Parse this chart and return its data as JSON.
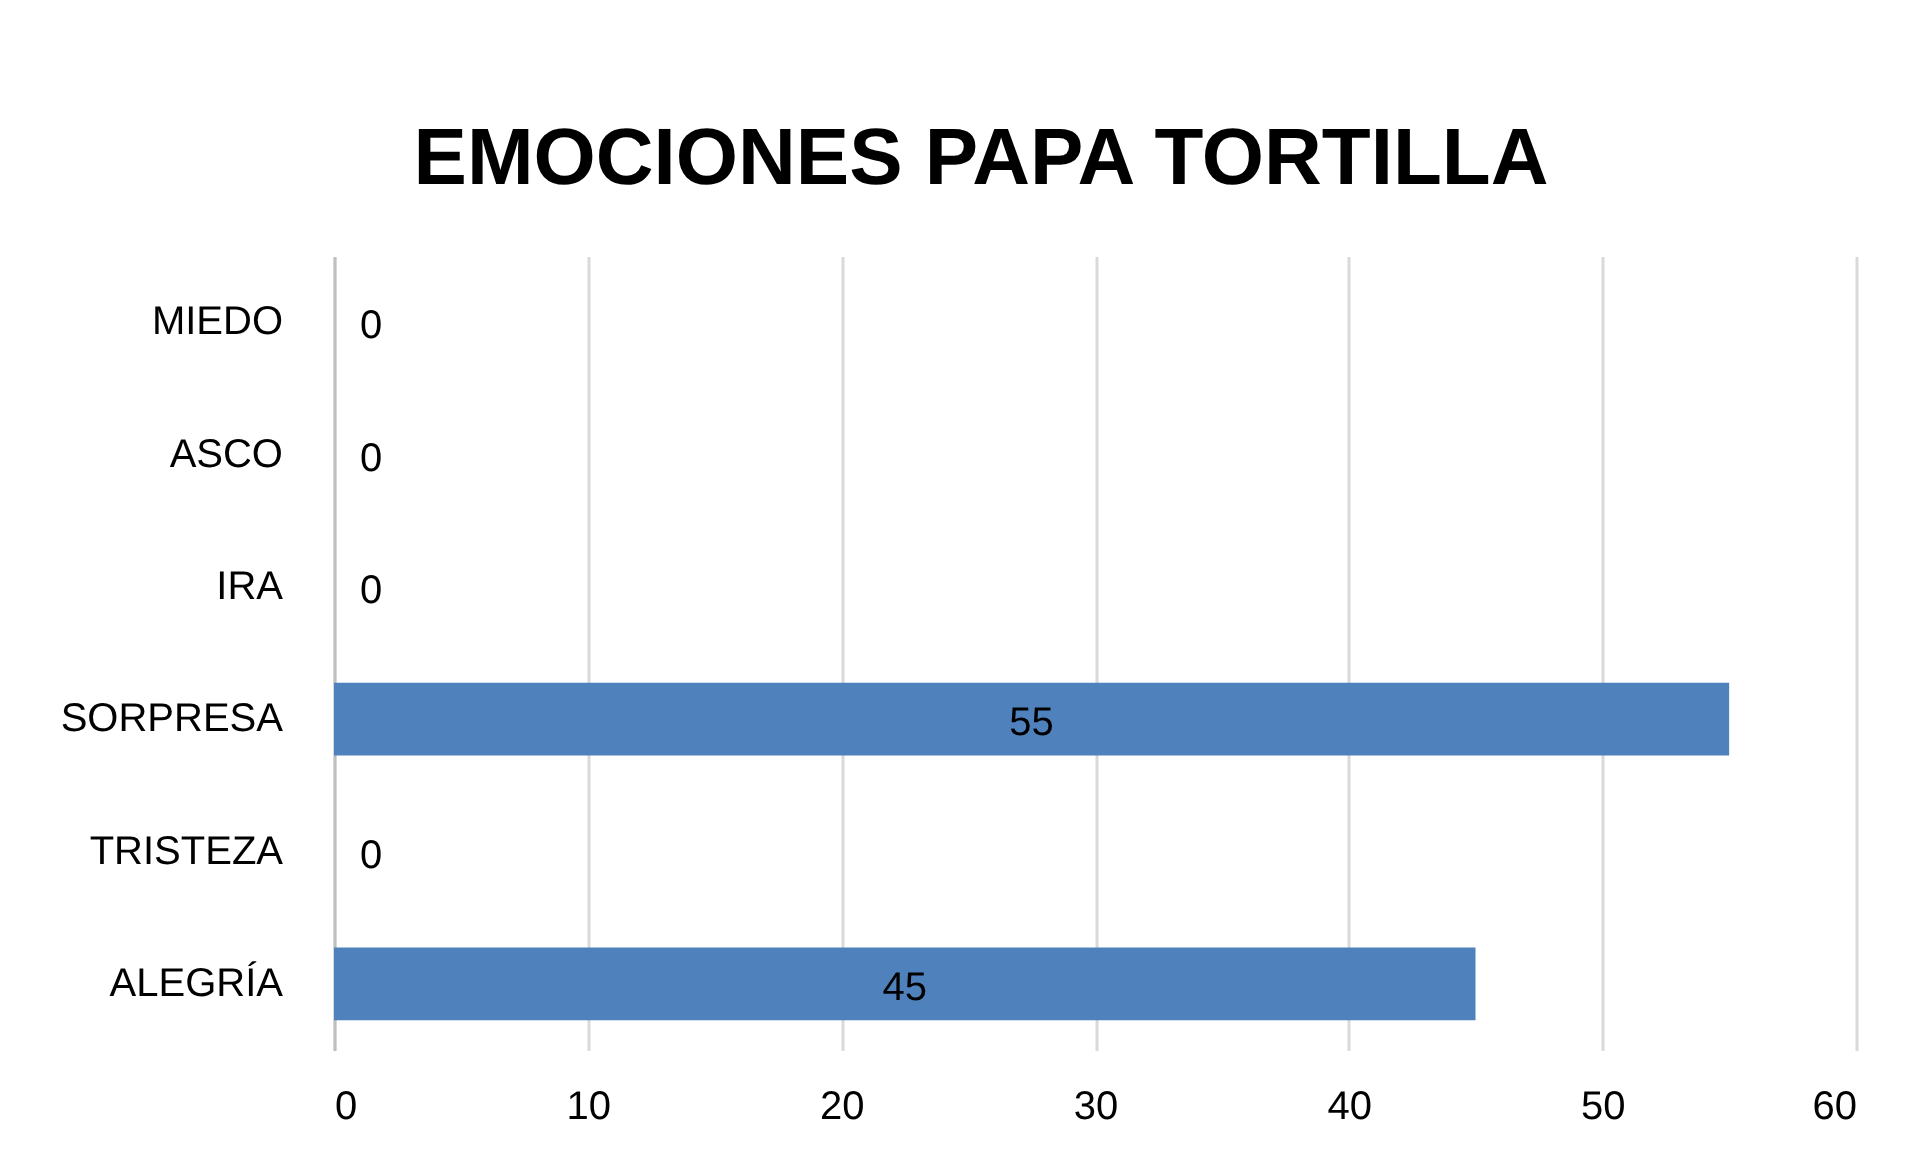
{
  "chart_data": {
    "type": "bar",
    "orientation": "horizontal",
    "title": "EMOCIONES PAPA TORTILLA",
    "categories": [
      "MIEDO",
      "ASCO",
      "IRA",
      "SORPRESA",
      "TRISTEZA",
      "ALEGRÍA"
    ],
    "values": [
      0,
      0,
      0,
      55,
      0,
      45
    ],
    "color": "#4f81bd",
    "xlim": [
      0,
      60
    ],
    "xticks": [
      0,
      10,
      20,
      30,
      40,
      50,
      60
    ],
    "grid": "x",
    "data_labels": true
  }
}
